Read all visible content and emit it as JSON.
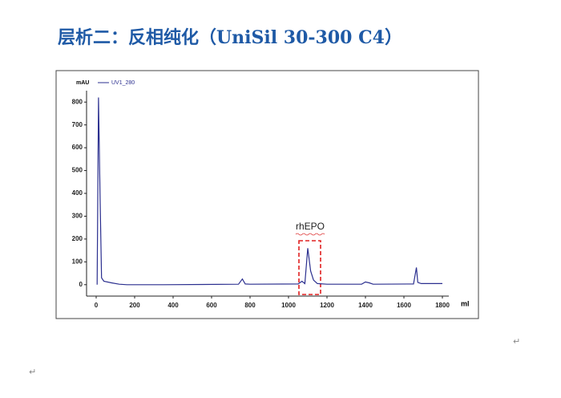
{
  "chart_data": {
    "type": "line",
    "title": "层析二：反相纯化（UniSil 30-300 C4）",
    "y_label": "mAU",
    "x_label": "ml",
    "annotation": "rhEPO",
    "series": [
      {
        "name": "UV1_280",
        "color": "#2b2f8f",
        "x": [
          5,
          12,
          20,
          28,
          40,
          80,
          120,
          160,
          350,
          740,
          760,
          775,
          800,
          1050,
          1070,
          1085,
          1100,
          1115,
          1130,
          1150,
          1200,
          1380,
          1400,
          1420,
          1440,
          1650,
          1665,
          1672,
          1690,
          1800
        ],
        "values": [
          0,
          820,
          400,
          30,
          15,
          8,
          2,
          0,
          0,
          2,
          25,
          3,
          2,
          3,
          15,
          5,
          160,
          60,
          20,
          5,
          2,
          2,
          12,
          8,
          2,
          3,
          75,
          10,
          5,
          5
        ]
      }
    ],
    "xlim": [
      -50,
      1900
    ],
    "xticks": [
      0,
      200,
      400,
      600,
      800,
      1000,
      1200,
      1400,
      1600,
      1800
    ],
    "ylim": [
      -50,
      850
    ],
    "yticks": [
      0,
      100,
      200,
      300,
      400,
      500,
      600,
      700,
      800
    ],
    "paragraph_marks": [
      "↵",
      "↵"
    ]
  }
}
